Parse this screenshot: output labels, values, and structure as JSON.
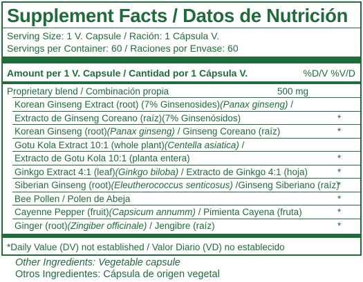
{
  "title": "Supplement Facts / Datos de Nutrición",
  "serving_size": "Serving Size: 1 V. Capsule / Ración: 1 Cápsula V.",
  "servings_per_container": "Servings per Container: 60 / Raciones por Envase: 60",
  "amount_header": "Amount per 1 V. Capsule / Cantidad por 1 Cápsula V.",
  "dv_header": "%D/V %V/D",
  "blend": {
    "name": "Proprietary blend / Combinación propia",
    "amount": "500 mg"
  },
  "ingredients": [
    {
      "pre": "Korean Ginseng Extract (root) (7% Ginsenosides)",
      "ital": "(Panax ginseng)",
      "post": " /",
      "star": ""
    },
    {
      "pre": "Extracto de Ginseng Coreano (raíz)(7% Ginsenósidos)",
      "ital": "",
      "post": "",
      "star": "*"
    },
    {
      "pre": "Korean Ginseng (root)",
      "ital": "(Panax ginseng)",
      "post": " / Ginseng Coreano (raíz)",
      "star": "*"
    },
    {
      "pre": "Gotu Kola Extract 10:1 (whole plant)",
      "ital": "(Centella asiatica)",
      "post": " /",
      "star": ""
    },
    {
      "pre": "Extracto de Gotu Kola 10:1 (planta entera)",
      "ital": "",
      "post": "",
      "star": "*"
    },
    {
      "pre": "Ginkgo Extract 4:1 (leaf)",
      "ital": "(Ginkgo biloba)",
      "post": " / Extracto de Ginkgo 4:1 (hoja)",
      "star": "*"
    },
    {
      "pre": "Siberian Ginseng (root)",
      "ital": "(Eleutherococcus senticosus)",
      "post": " /Ginseng Siberiano (raíz)",
      "star": "*"
    },
    {
      "pre": "Bee Pollen / Polen de Abeja",
      "ital": "",
      "post": "",
      "star": "*"
    },
    {
      "pre": "Cayenne Pepper (fruit)",
      "ital": "(Capsicum annumm)",
      "post": " / Pimienta Cayena (fruta)",
      "star": "*"
    },
    {
      "pre": "Ginger (root)",
      "ital": "(Zingiber officinale)",
      "post": " / Jengibre (raíz)",
      "star": "*"
    }
  ],
  "footnote": "*Daily Value (DV) not established / Valor Diario (VD) no establecido",
  "other_ingredients": "Other Ingredients: Vegetable capsule",
  "otros_ingredientes": "Otros Ingredientes: Cápsula de origen vegetal",
  "colors": {
    "green": "#1f6b3a"
  }
}
